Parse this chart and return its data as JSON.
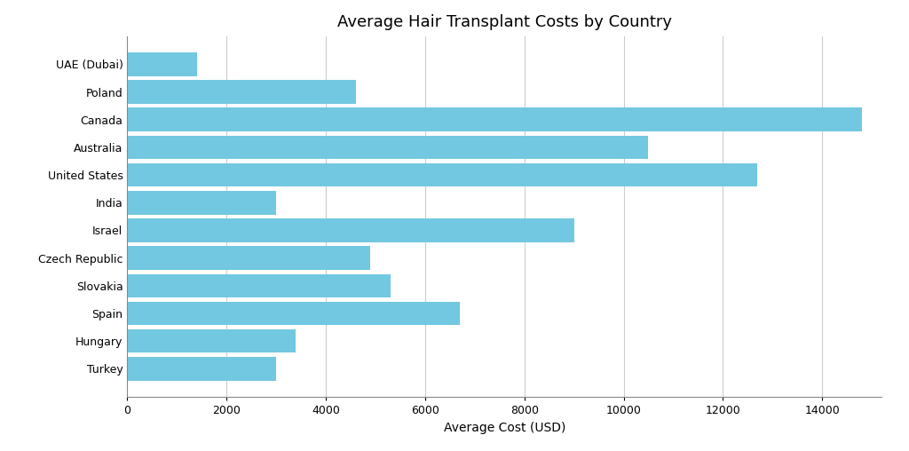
{
  "countries": [
    "UAE (Dubai)",
    "Poland",
    "Canada",
    "Australia",
    "United States",
    "India",
    "Israel",
    "Czech Republic",
    "Slovakia",
    "Spain",
    "Hungary",
    "Turkey"
  ],
  "values": [
    1400,
    4600,
    14800,
    10500,
    12700,
    3000,
    9000,
    4900,
    5300,
    6700,
    3400,
    3000
  ],
  "bar_color": "#72c8e0",
  "title": "Average Hair Transplant Costs by Country",
  "xlabel": "Average Cost (USD)",
  "xlim": [
    0,
    15200
  ],
  "xticks": [
    0,
    2000,
    4000,
    6000,
    8000,
    10000,
    12000,
    14000
  ],
  "background_color": "#ffffff",
  "grid_color": "#cccccc",
  "title_fontsize": 13,
  "label_fontsize": 10,
  "tick_fontsize": 9,
  "bar_height": 0.85
}
